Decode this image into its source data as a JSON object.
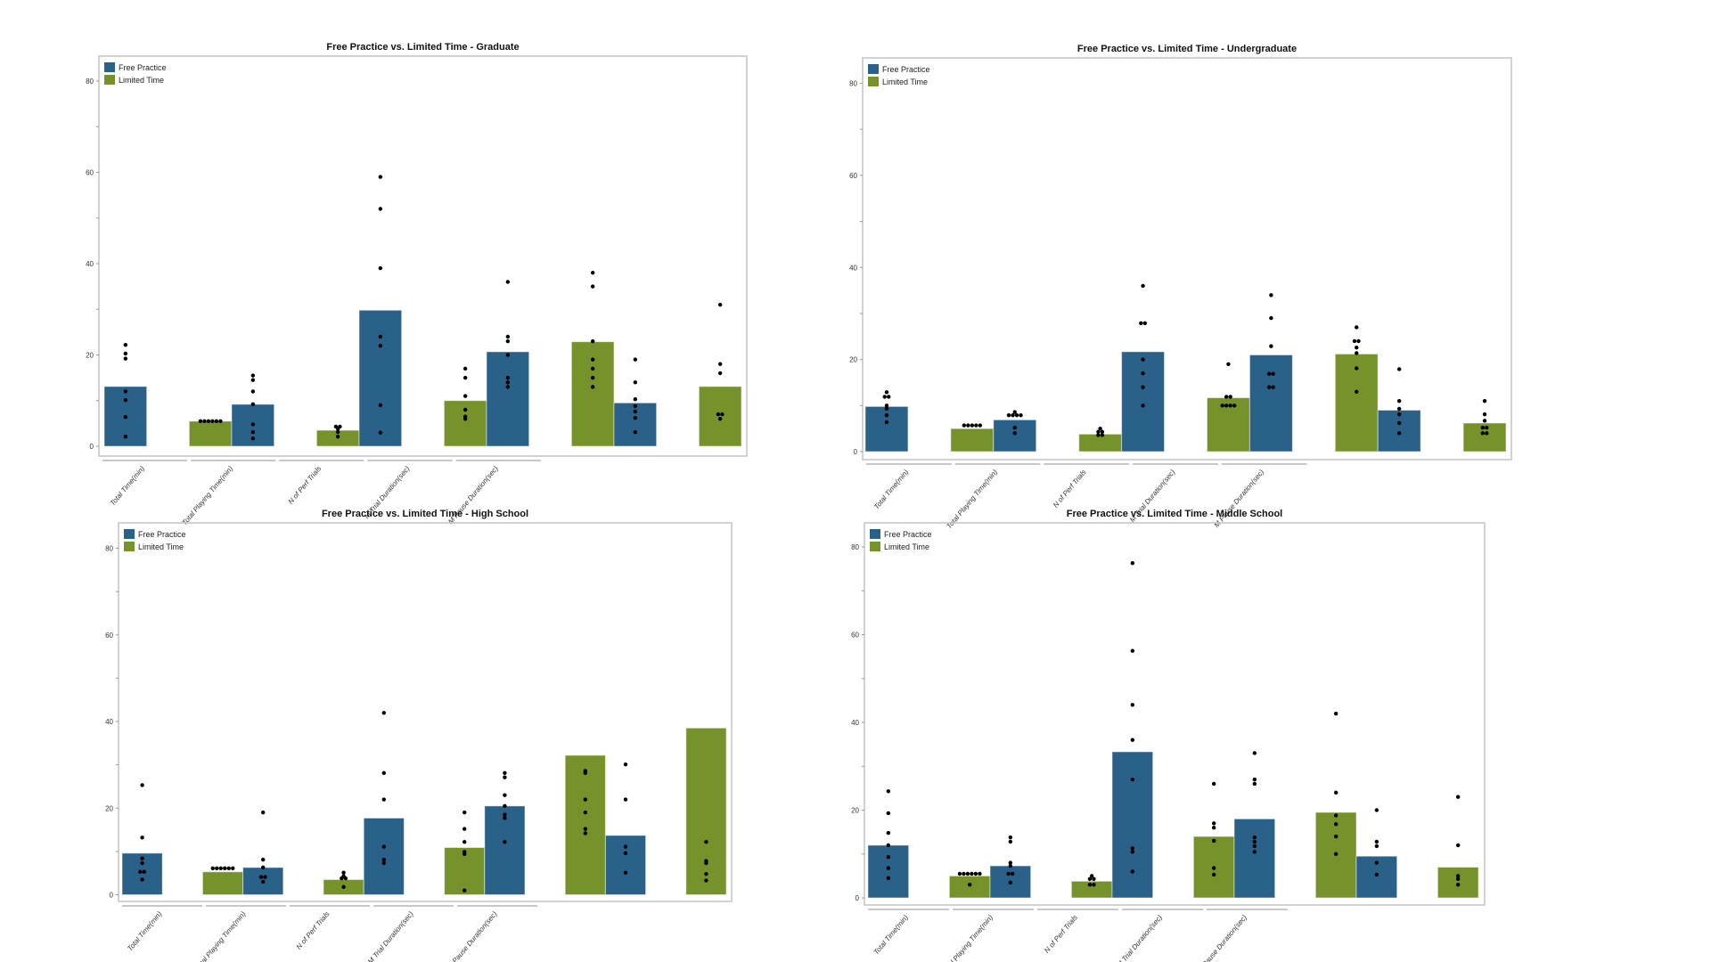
{
  "colors": {
    "free_practice": "#2a6189",
    "limited_time": "#76932b",
    "points": "#000000"
  },
  "chart_data": [
    {
      "type": "bar",
      "title": "Free Practice vs. Limited Time - Graduate",
      "categories": [
        "Total Time(min)",
        "Total Playing Time(min)",
        "N of Perf Trials",
        "M Trial Duration(sec)",
        "M Pause Duration(sec)"
      ],
      "ylim": [
        0,
        80
      ],
      "yticks": [
        0,
        20,
        40,
        60,
        80
      ],
      "legend": "top-left",
      "grid": false,
      "series": [
        {
          "name": "Free Practice",
          "values": [
            13.1,
            9.2,
            29.8,
            20.7,
            9.5
          ],
          "points": [
            [
              22.2,
              20.3,
              19.2,
              12,
              10.1,
              6.4,
              2.1
            ],
            [
              15.5,
              14.5,
              12,
              9.2,
              4.8,
              3.1,
              1.7
            ],
            [
              59,
              52,
              39,
              24,
              22,
              9,
              3
            ],
            [
              36,
              24,
              23,
              20,
              15,
              14,
              13
            ],
            [
              19,
              14,
              10.3,
              8.8,
              7.6,
              6.2,
              3.1
            ]
          ]
        },
        {
          "name": "Limited Time",
          "values": [
            5.5,
            3.5,
            10.0,
            22.9,
            13.1
          ],
          "points": [
            [
              5.5,
              5.5,
              5.5,
              5.5,
              5.5,
              5.5
            ],
            [
              4.3,
              4.3,
              3.8,
              3.1,
              2.1
            ],
            [
              17,
              15,
              11,
              8,
              6.5,
              6
            ],
            [
              38,
              35,
              23,
              19,
              17,
              15,
              13
            ],
            [
              31,
              18,
              16,
              7,
              7,
              6
            ]
          ]
        }
      ]
    },
    {
      "type": "bar",
      "title": "Free Practice vs. Limited Time - Undergraduate",
      "categories": [
        "Total Time(min)",
        "Total Playing Time(min)",
        "N of Perf Trials",
        "M Trial Duration(sec)",
        "M Pause Duration(sec)"
      ],
      "ylim": [
        0,
        80
      ],
      "yticks": [
        0,
        20,
        40,
        60,
        80
      ],
      "legend": "top-left",
      "grid": false,
      "series": [
        {
          "name": "Free Practice",
          "values": [
            9.8,
            6.9,
            21.7,
            21.0,
            9.0
          ],
          "points": [
            [
              12.9,
              11.9,
              11.9,
              10,
              9.3,
              7.9,
              6.4
            ],
            [
              8.6,
              7.9,
              7.9,
              7.9,
              7.9,
              5.2,
              4
            ],
            [
              36,
              27.9,
              27.9,
              20,
              17,
              14,
              10
            ],
            [
              34,
              29,
              22.9,
              16.9,
              16.9,
              14,
              14
            ],
            [
              17.9,
              11,
              9.3,
              8.1,
              6.2,
              4
            ]
          ]
        },
        {
          "name": "Limited Time",
          "values": [
            5.0,
            3.8,
            11.7,
            21.2,
            6.2
          ],
          "points": [
            [
              5.7,
              5.7,
              5.7,
              5.7,
              5.7
            ],
            [
              5,
              4.3,
              4.3,
              3.6,
              3.6
            ],
            [
              19,
              11.9,
              11.9,
              10,
              10,
              10,
              10
            ],
            [
              27,
              24,
              24,
              22.6,
              21.4,
              18.1,
              13
            ],
            [
              11,
              8.1,
              6.7,
              5.2,
              5.2,
              4,
              4
            ]
          ]
        }
      ]
    },
    {
      "type": "bar",
      "title": "Free Practice vs. Limited Time - High School",
      "categories": [
        "Total Time(min)",
        "Total Playing Time(min)",
        "N of Perf Trials",
        "M Trial Duration(sec)",
        "M Pause Duration(sec)"
      ],
      "ylim": [
        0,
        80
      ],
      "yticks": [
        0,
        20,
        40,
        60,
        80
      ],
      "legend": "top-left",
      "grid": false,
      "series": [
        {
          "name": "Free Practice",
          "values": [
            9.6,
            6.3,
            17.7,
            20.5,
            13.7
          ],
          "points": [
            [
              25.3,
              13.2,
              8.4,
              7.3,
              5.3,
              5.3,
              3.5
            ],
            [
              19,
              8.1,
              6.3,
              4.1,
              4.1,
              3
            ],
            [
              42,
              28.1,
              22,
              11.1,
              8.1,
              7.3
            ],
            [
              28.1,
              27.1,
              23,
              20.5,
              18.5,
              17.7,
              12.2
            ],
            [
              30.1,
              22,
              11.1,
              9.6,
              5.1
            ]
          ]
        },
        {
          "name": "Limited Time",
          "values": [
            5.3,
            3.5,
            10.9,
            32.2,
            38.5
          ],
          "points": [
            [
              6.1,
              6.1,
              6.1,
              6.1,
              6.1,
              6.1
            ],
            [
              5.1,
              4.3,
              3.8,
              3.8,
              1.8
            ],
            [
              19,
              15.2,
              12.2,
              9.9,
              9.4,
              1
            ],
            [
              28.6,
              28.1,
              22,
              19,
              15.2,
              14.2
            ],
            [
              12.2,
              7.8,
              7.3,
              4.8,
              3.3
            ]
          ]
        }
      ]
    },
    {
      "type": "bar",
      "title": "Free Practice vs. Limited Time - Middle School",
      "categories": [
        "Total Time(min)",
        "Total Playing Time(min)",
        "N of Perf Trials",
        "M Trial Duration(sec)",
        "M Pause Duration(sec)"
      ],
      "ylim": [
        0,
        80
      ],
      "yticks": [
        0,
        20,
        40,
        60,
        80
      ],
      "legend": "top-left",
      "grid": false,
      "series": [
        {
          "name": "Free Practice",
          "values": [
            12.0,
            7.3,
            33.3,
            18.0,
            9.5
          ],
          "points": [
            [
              24.3,
              19.3,
              14.8,
              12,
              9.3,
              6.8,
              4.5
            ],
            [
              13.8,
              12.8,
              8,
              7.3,
              5.5,
              5.5,
              3.5
            ],
            [
              76.3,
              56.3,
              44,
              36,
              27,
              11.3,
              10.5,
              6
            ],
            [
              33,
              27,
              26,
              13.8,
              12.8,
              11.8,
              10.5
            ],
            [
              20,
              12.8,
              11.8,
              8,
              5.3
            ]
          ]
        },
        {
          "name": "Limited Time",
          "values": [
            5.0,
            3.8,
            14.0,
            19.5,
            7.0
          ],
          "points": [
            [
              5.5,
              5.5,
              5.5,
              5.5,
              5.5,
              5.5,
              3
            ],
            [
              5,
              4.3,
              4.3,
              3,
              3
            ],
            [
              26,
              17,
              16,
              13,
              6.8,
              5.3
            ],
            [
              42,
              24,
              18.8,
              16.8,
              14,
              10
            ],
            [
              23,
              12,
              5,
              4.3,
              3
            ]
          ]
        }
      ]
    }
  ]
}
